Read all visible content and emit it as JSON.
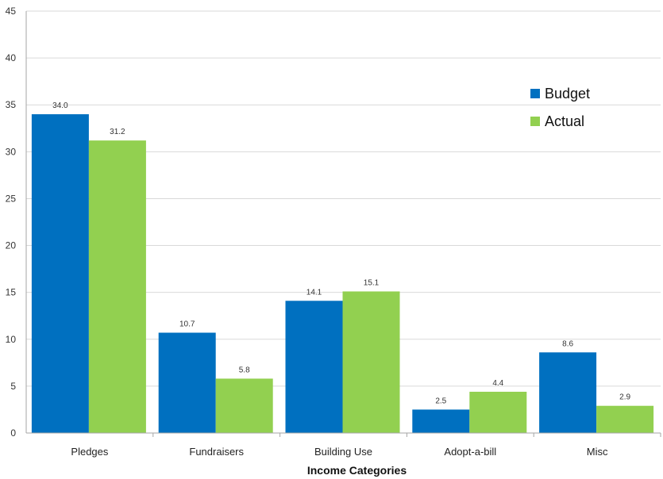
{
  "chart_data": {
    "type": "bar",
    "categories": [
      "Pledges",
      "Fundraisers",
      "Building Use",
      "Adopt-a-bill",
      "Misc"
    ],
    "series": [
      {
        "name": "Budget",
        "values": [
          34.0,
          10.7,
          14.1,
          2.5,
          8.6
        ],
        "color": "#0070C0"
      },
      {
        "name": "Actual",
        "values": [
          31.2,
          5.8,
          15.1,
          4.4,
          2.9
        ],
        "color": "#92D050"
      }
    ],
    "data_labels": {
      "Budget": [
        "34.0",
        "10.7",
        "14.1",
        "2.5",
        "8.6"
      ],
      "Actual": [
        "31.2",
        "5.8",
        "15.1",
        "4.4",
        "2.9"
      ]
    },
    "title": "",
    "xlabel": "Income Categories",
    "ylabel": "",
    "ylim": [
      0,
      45
    ],
    "yticks": [
      0,
      5,
      10,
      15,
      20,
      25,
      30,
      35,
      40,
      45
    ],
    "grid": true,
    "legend_position": "right"
  }
}
